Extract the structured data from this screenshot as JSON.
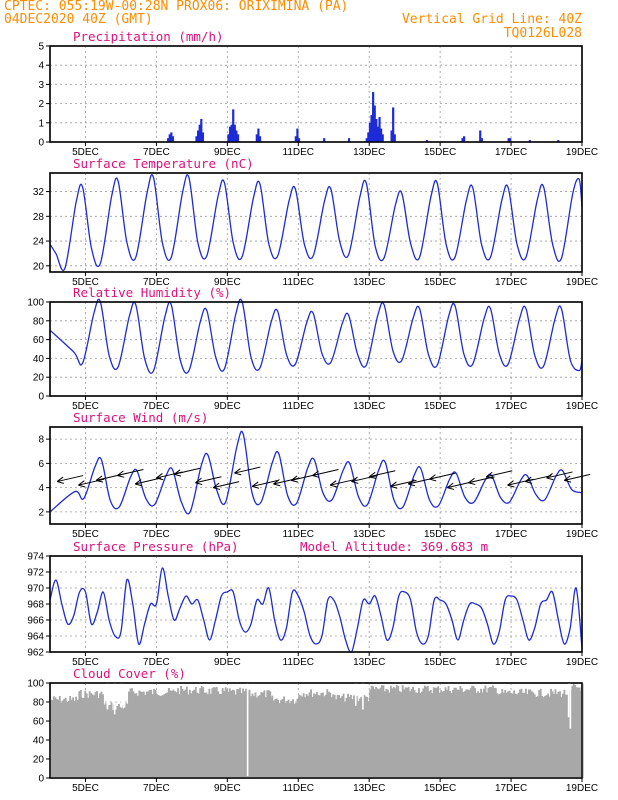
{
  "header": {
    "line1": "CPTEC:   055:19W-00:28N   PROX06: ORIXIMINA (PA)",
    "line2_left": "04DEC2020 40Z (GMT)",
    "line2_right": "Vertical Grid Line: 40Z",
    "line3_right": "TQ0126L028"
  },
  "colors": {
    "accent": "#ff8c00",
    "title": "#e0107c",
    "series": "#1d2bd8",
    "cloud": "#a8a8a8",
    "grid": "#9a9a9a"
  },
  "x_axis": {
    "start_day": 4,
    "end_day": 19,
    "tick_days": [
      5,
      7,
      9,
      11,
      13,
      15,
      17,
      19
    ],
    "tick_labels": [
      "5DEC",
      "7DEC",
      "9DEC",
      "11DEC",
      "13DEC",
      "15DEC",
      "17DEC",
      "19DEC"
    ]
  },
  "chart_data": [
    {
      "type": "bar",
      "title": "Precipitation  (mm/h)",
      "ylim": [
        0,
        5
      ],
      "yticks": [
        0,
        1,
        2,
        3,
        4,
        5
      ],
      "events": [
        {
          "day": 7.3,
          "values": [
            0.2,
            0.4,
            0.5,
            0.3
          ]
        },
        {
          "day": 8.1,
          "values": [
            0.3,
            0.6,
            0.9,
            1.2,
            0.5
          ]
        },
        {
          "day": 9.0,
          "values": [
            0.4,
            0.8,
            0.9,
            1.7,
            0.9,
            0.6,
            0.4
          ]
        },
        {
          "day": 9.8,
          "values": [
            0.4,
            0.7,
            0.3
          ]
        },
        {
          "day": 10.9,
          "values": [
            0.3,
            0.7,
            0.2
          ]
        },
        {
          "day": 11.7,
          "values": [
            0.2
          ]
        },
        {
          "day": 12.4,
          "values": [
            0.2
          ]
        },
        {
          "day": 12.9,
          "values": [
            0.2,
            0.5,
            1.0,
            1.4,
            2.6,
            1.9,
            1.2,
            0.8,
            1.3,
            0.7,
            0.4
          ]
        },
        {
          "day": 13.6,
          "values": [
            0.6,
            1.8,
            0.4
          ]
        },
        {
          "day": 14.6,
          "values": [
            0.1
          ]
        },
        {
          "day": 15.6,
          "values": [
            0.2,
            0.3
          ]
        },
        {
          "day": 16.1,
          "values": [
            0.6,
            0.2
          ]
        },
        {
          "day": 16.9,
          "values": [
            0.2,
            0.2
          ]
        },
        {
          "day": 17.5,
          "values": [
            0.1
          ]
        },
        {
          "day": 18.3,
          "values": [
            0.1
          ]
        }
      ]
    },
    {
      "type": "line",
      "title": "Surface Temperature (nC)",
      "ylim": [
        19,
        35
      ],
      "yticks": [
        20,
        24,
        28,
        32
      ],
      "start_min": 23.5,
      "min_day_offset": 0.42,
      "daily_max": [
        32.7,
        33.7,
        34.2,
        34.2,
        33.4,
        33.2,
        32.4,
        32.4,
        33.3,
        31.7,
        33.3,
        32.6,
        32.6,
        32.7,
        34.0
      ],
      "daily_min": [
        19.6,
        20.4,
        21.4,
        21.4,
        21.6,
        21.5,
        21.6,
        21.6,
        21.8,
        21.3,
        21.4,
        21.4,
        21.4,
        21.4,
        21.2
      ],
      "end_value": 29.5
    },
    {
      "type": "line",
      "title": "Relative Humidity (%)",
      "ylim": [
        0,
        100
      ],
      "yticks": [
        0,
        20,
        40,
        60,
        80,
        100
      ],
      "start_min": 70,
      "min_day_offset": 0.92,
      "daily_max": [
        100,
        97,
        97,
        91,
        100,
        90,
        88,
        86,
        97,
        93,
        96,
        93,
        93,
        93,
        90
      ],
      "daily_min": [
        35,
        31,
        27,
        27,
        29,
        30,
        34,
        36,
        33,
        38,
        33,
        34,
        34,
        32,
        27
      ],
      "end_value": 38
    },
    {
      "type": "line",
      "title": "Surface Wind (m/s)",
      "ylim": [
        1,
        9
      ],
      "yticks": [
        2,
        4,
        6,
        8
      ],
      "start_min": 2.0,
      "min_day_offset": 0.95,
      "daily_max": [
        6.3,
        5.4,
        5.5,
        6.7,
        8.4,
        6.8,
        6.3,
        6.0,
        6.1,
        5.6,
        5.2,
        5.0,
        5.0,
        5.4,
        5.1
      ],
      "daily_min": [
        3.1,
        2.4,
        2.6,
        2.0,
        2.8,
        2.8,
        2.7,
        3.0,
        2.6,
        2.4,
        2.5,
        2.8,
        2.8,
        3.0,
        3.6
      ],
      "end_value": 3.6,
      "arrow_days": [
        4.2,
        4.8,
        5.3,
        5.9,
        6.4,
        7.0,
        7.5,
        8.1,
        8.6,
        9.2,
        9.7,
        10.3,
        10.8,
        11.4,
        11.9,
        12.5,
        13.0,
        13.6,
        14.1,
        14.7,
        15.2,
        15.8,
        16.3,
        16.9,
        17.4,
        18.0,
        18.5
      ],
      "arrow_speeds": [
        4.5,
        4.2,
        4.6,
        5.0,
        4.3,
        4.8,
        5.1,
        4.4,
        4.0,
        5.2,
        4.1,
        4.3,
        4.6,
        5.0,
        4.2,
        4.5,
        4.9,
        4.1,
        4.3,
        4.7,
        4.0,
        4.4,
        4.9,
        4.2,
        4.5,
        4.8,
        4.6
      ]
    },
    {
      "type": "line",
      "title": "Surface Pressure (hPa)",
      "subtitle": "Model Altitude: 369.683 m",
      "ylim": [
        962,
        974
      ],
      "yticks": [
        962,
        964,
        966,
        968,
        970,
        972,
        974
      ],
      "daily_points": [
        [
          968.5,
          971.0,
          968.0,
          965.5,
          966.5,
          969.5
        ],
        [
          969.5,
          965.5,
          967.0,
          969.5,
          966.0,
          964.0
        ],
        [
          964.5,
          971.0,
          968.0,
          963.0,
          965.5,
          968.0
        ],
        [
          968.0,
          972.5,
          969.0,
          966.0,
          967.5,
          969.0
        ],
        [
          968.0,
          968.5,
          966.0,
          963.5,
          966.0,
          969.0
        ],
        [
          969.5,
          969.5,
          966.0,
          964.5,
          965.5,
          968.5
        ],
        [
          968.0,
          970.0,
          966.0,
          963.5,
          965.0,
          969.5
        ],
        [
          969.0,
          967.0,
          964.0,
          963.0,
          964.0,
          968.5
        ],
        [
          968.5,
          966.5,
          963.5,
          962.0,
          965.0,
          968.5
        ],
        [
          968.0,
          969.0,
          966.5,
          963.5,
          965.0,
          969.0
        ],
        [
          969.5,
          968.5,
          964.5,
          963.0,
          964.0,
          968.5
        ],
        [
          968.5,
          968.0,
          966.0,
          963.5,
          966.0,
          968.0
        ],
        [
          968.0,
          967.5,
          965.5,
          963.0,
          964.5,
          968.5
        ],
        [
          969.0,
          968.5,
          966.0,
          963.5,
          965.0,
          968.0
        ],
        [
          968.5,
          969.5,
          966.0,
          963.0,
          965.0,
          970.0
        ]
      ],
      "end_value": 962.5
    },
    {
      "type": "bar",
      "title": "Cloud Cover (%)",
      "ylim": [
        0,
        100
      ],
      "yticks": [
        0,
        20,
        40,
        60,
        80,
        100
      ],
      "segments": [
        {
          "start": 4.0,
          "end": 4.8,
          "value": 87
        },
        {
          "start": 4.8,
          "end": 5.5,
          "value": 93
        },
        {
          "start": 5.5,
          "end": 6.2,
          "value": 80
        },
        {
          "start": 6.2,
          "end": 7.5,
          "value": 95
        },
        {
          "start": 7.5,
          "end": 8.3,
          "value": 97
        },
        {
          "start": 8.3,
          "end": 9.0,
          "value": 96
        },
        {
          "start": 9.0,
          "end": 9.6,
          "value": 95
        },
        {
          "start": 9.6,
          "end": 10.2,
          "value": 93
        },
        {
          "start": 10.2,
          "end": 11.0,
          "value": 87
        },
        {
          "start": 11.0,
          "end": 12.0,
          "value": 94
        },
        {
          "start": 12.0,
          "end": 13.0,
          "value": 89
        },
        {
          "start": 13.0,
          "end": 16.6,
          "value": 98
        },
        {
          "start": 16.6,
          "end": 18.7,
          "value": 94
        },
        {
          "start": 18.7,
          "end": 19.0,
          "value": 100
        }
      ],
      "dips": [
        {
          "day": 5.6,
          "value": 72
        },
        {
          "day": 5.8,
          "value": 67
        },
        {
          "day": 6.0,
          "value": 74
        },
        {
          "day": 9.55,
          "value": 2
        },
        {
          "day": 12.6,
          "value": 76
        },
        {
          "day": 12.8,
          "value": 72
        },
        {
          "day": 18.6,
          "value": 64
        },
        {
          "day": 18.65,
          "value": 52
        }
      ]
    }
  ]
}
